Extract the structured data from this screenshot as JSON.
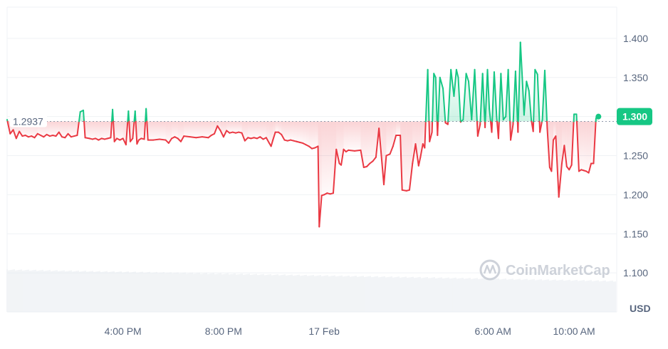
{
  "chart_data": {
    "type": "line",
    "currency_label": "USD",
    "watermark": "CoinMarketCap",
    "reference": {
      "value": 1.2937,
      "label": "1.2937"
    },
    "current": {
      "value": 1.3,
      "label": "1.300"
    },
    "ylim": [
      1.05,
      1.44
    ],
    "yticks": [
      {
        "value": 1.4,
        "label": "1.400"
      },
      {
        "value": 1.35,
        "label": "1.350"
      },
      {
        "value": 1.3,
        "label": "1.300"
      },
      {
        "value": 1.25,
        "label": "1.250"
      },
      {
        "value": 1.2,
        "label": "1.200"
      },
      {
        "value": 1.15,
        "label": "1.150"
      },
      {
        "value": 1.1,
        "label": "1.100"
      }
    ],
    "xlim": [
      0,
      1000
    ],
    "xticks": [
      {
        "t": 190,
        "label": "4:00 PM"
      },
      {
        "t": 355,
        "label": "8:00 PM"
      },
      {
        "t": 520,
        "label": "17 Feb"
      },
      {
        "t": 797,
        "label": "6:00 AM"
      },
      {
        "t": 930,
        "label": "10:00 AM"
      }
    ],
    "colors": {
      "up": "#16c784",
      "down": "#ea3943",
      "grid": "#eff2f5",
      "volume": "#e8ecf1",
      "reference": "#8f99aa"
    },
    "series": [
      {
        "points": [
          [
            0,
            1.296
          ],
          [
            5,
            1.278
          ],
          [
            10,
            1.283
          ],
          [
            15,
            1.272
          ],
          [
            20,
            1.281
          ],
          [
            25,
            1.275
          ],
          [
            30,
            1.276
          ],
          [
            35,
            1.274
          ],
          [
            40,
            1.275
          ],
          [
            45,
            1.273
          ],
          [
            50,
            1.278
          ],
          [
            55,
            1.276
          ],
          [
            60,
            1.274
          ],
          [
            65,
            1.277
          ],
          [
            70,
            1.275
          ],
          [
            75,
            1.276
          ],
          [
            80,
            1.275
          ],
          [
            85,
            1.28
          ],
          [
            90,
            1.274
          ],
          [
            95,
            1.273
          ],
          [
            100,
            1.278
          ],
          [
            105,
            1.274
          ],
          [
            110,
            1.275
          ],
          [
            115,
            1.276
          ],
          [
            120,
            1.306
          ],
          [
            125,
            1.308
          ],
          [
            128,
            1.273
          ],
          [
            135,
            1.272
          ],
          [
            140,
            1.271
          ],
          [
            145,
            1.272
          ],
          [
            150,
            1.27
          ],
          [
            155,
            1.272
          ],
          [
            160,
            1.271
          ],
          [
            165,
            1.272
          ],
          [
            170,
            1.273
          ],
          [
            173,
            1.309
          ],
          [
            176,
            1.268
          ],
          [
            180,
            1.272
          ],
          [
            185,
            1.27
          ],
          [
            190,
            1.272
          ],
          [
            195,
            1.264
          ],
          [
            199,
            1.307
          ],
          [
            202,
            1.268
          ],
          [
            206,
            1.272
          ],
          [
            210,
            1.307
          ],
          [
            213,
            1.265
          ],
          [
            216,
            1.27
          ],
          [
            220,
            1.272
          ],
          [
            225,
            1.271
          ],
          [
            228,
            1.31
          ],
          [
            231,
            1.27
          ],
          [
            240,
            1.27
          ],
          [
            250,
            1.271
          ],
          [
            260,
            1.27
          ],
          [
            265,
            1.266
          ],
          [
            270,
            1.272
          ],
          [
            275,
            1.274
          ],
          [
            280,
            1.272
          ],
          [
            285,
            1.268
          ],
          [
            290,
            1.275
          ],
          [
            300,
            1.274
          ],
          [
            310,
            1.273
          ],
          [
            320,
            1.274
          ],
          [
            330,
            1.273
          ],
          [
            335,
            1.276
          ],
          [
            340,
            1.278
          ],
          [
            345,
            1.288
          ],
          [
            350,
            1.282
          ],
          [
            355,
            1.274
          ],
          [
            360,
            1.282
          ],
          [
            365,
            1.279
          ],
          [
            370,
            1.28
          ],
          [
            375,
            1.279
          ],
          [
            380,
            1.28
          ],
          [
            385,
            1.279
          ],
          [
            390,
            1.269
          ],
          [
            395,
            1.273
          ],
          [
            400,
            1.272
          ],
          [
            405,
            1.273
          ],
          [
            410,
            1.272
          ],
          [
            415,
            1.274
          ],
          [
            420,
            1.271
          ],
          [
            425,
            1.273
          ],
          [
            430,
            1.266
          ],
          [
            433,
            1.262
          ],
          [
            436,
            1.27
          ],
          [
            440,
            1.28
          ],
          [
            445,
            1.28
          ],
          [
            450,
            1.277
          ],
          [
            455,
            1.27
          ],
          [
            460,
            1.269
          ],
          [
            465,
            1.27
          ],
          [
            470,
            1.269
          ],
          [
            475,
            1.268
          ],
          [
            480,
            1.267
          ],
          [
            485,
            1.266
          ],
          [
            490,
            1.264
          ],
          [
            495,
            1.262
          ],
          [
            500,
            1.259
          ],
          [
            505,
            1.26
          ],
          [
            510,
            1.262
          ],
          [
            512,
            1.159
          ],
          [
            516,
            1.199
          ],
          [
            520,
            1.2
          ],
          [
            525,
            1.202
          ],
          [
            530,
            1.201
          ],
          [
            535,
            1.202
          ],
          [
            540,
            1.258
          ],
          [
            545,
            1.24
          ],
          [
            548,
            1.238
          ],
          [
            552,
            1.258
          ],
          [
            556,
            1.255
          ],
          [
            560,
            1.257
          ],
          [
            570,
            1.256
          ],
          [
            580,
            1.257
          ],
          [
            585,
            1.235
          ],
          [
            590,
            1.236
          ],
          [
            595,
            1.24
          ],
          [
            600,
            1.243
          ],
          [
            605,
            1.248
          ],
          [
            610,
            1.285
          ],
          [
            615,
            1.24
          ],
          [
            618,
            1.213
          ],
          [
            622,
            1.25
          ],
          [
            628,
            1.252
          ],
          [
            633,
            1.262
          ],
          [
            638,
            1.276
          ],
          [
            645,
            1.276
          ],
          [
            648,
            1.206
          ],
          [
            655,
            1.205
          ],
          [
            660,
            1.206
          ],
          [
            665,
            1.24
          ],
          [
            670,
            1.265
          ],
          [
            675,
            1.237
          ],
          [
            678,
            1.248
          ],
          [
            682,
            1.265
          ],
          [
            685,
            1.26
          ],
          [
            690,
            1.36
          ],
          [
            693,
            1.268
          ],
          [
            697,
            1.28
          ],
          [
            700,
            1.355
          ],
          [
            703,
            1.35
          ],
          [
            706,
            1.276
          ],
          [
            710,
            1.35
          ],
          [
            715,
            1.336
          ],
          [
            719,
            1.292
          ],
          [
            723,
            1.29
          ],
          [
            728,
            1.36
          ],
          [
            733,
            1.326
          ],
          [
            737,
            1.36
          ],
          [
            740,
            1.35
          ],
          [
            744,
            1.293
          ],
          [
            748,
            1.296
          ],
          [
            753,
            1.355
          ],
          [
            757,
            1.345
          ],
          [
            762,
            1.296
          ],
          [
            767,
            1.36
          ],
          [
            772,
            1.275
          ],
          [
            776,
            1.29
          ],
          [
            780,
            1.355
          ],
          [
            784,
            1.286
          ],
          [
            788,
            1.36
          ],
          [
            791,
            1.31
          ],
          [
            795,
            1.28
          ],
          [
            799,
            1.357
          ],
          [
            803,
            1.3
          ],
          [
            806,
            1.272
          ],
          [
            810,
            1.355
          ],
          [
            814,
            1.296
          ],
          [
            818,
            1.3
          ],
          [
            822,
            1.36
          ],
          [
            826,
            1.27
          ],
          [
            830,
            1.29
          ],
          [
            834,
            1.358
          ],
          [
            838,
            1.28
          ],
          [
            842,
            1.395
          ],
          [
            845,
            1.35
          ],
          [
            848,
            1.302
          ],
          [
            852,
            1.345
          ],
          [
            856,
            1.333
          ],
          [
            860,
            1.295
          ],
          [
            863,
            1.281
          ],
          [
            866,
            1.36
          ],
          [
            870,
            1.354
          ],
          [
            874,
            1.28
          ],
          [
            878,
            1.296
          ],
          [
            882,
            1.359
          ],
          [
            886,
            1.285
          ],
          [
            890,
            1.235
          ],
          [
            893,
            1.23
          ],
          [
            896,
            1.27
          ],
          [
            900,
            1.275
          ],
          [
            905,
            1.197
          ],
          [
            910,
            1.24
          ],
          [
            914,
            1.263
          ],
          [
            918,
            1.236
          ],
          [
            922,
            1.232
          ],
          [
            926,
            1.238
          ],
          [
            930,
            1.303
          ],
          [
            934,
            1.303
          ],
          [
            938,
            1.23
          ],
          [
            942,
            1.232
          ],
          [
            946,
            1.231
          ],
          [
            950,
            1.23
          ],
          [
            954,
            1.228
          ],
          [
            958,
            1.24
          ],
          [
            962,
            1.24
          ],
          [
            966,
            1.298
          ],
          [
            970,
            1.3
          ]
        ]
      }
    ]
  }
}
